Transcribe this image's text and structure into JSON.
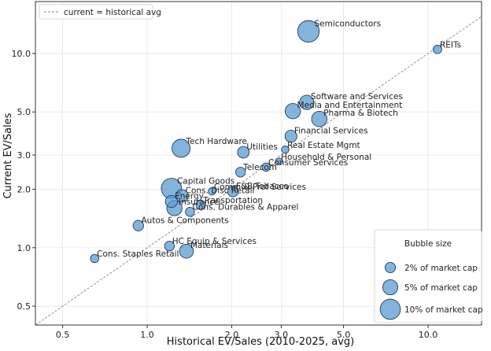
{
  "chart_data": {
    "type": "scatter",
    "title": "",
    "xlabel": "Historical EV/Sales (2010-2025, avg)",
    "ylabel": "Current EV/Sales",
    "x_scale": "log",
    "y_scale": "log",
    "xlim": [
      0.4,
      15.5
    ],
    "ylim": [
      0.4,
      18.5
    ],
    "x_ticks": [
      {
        "value": 0.5,
        "label": "0.5"
      },
      {
        "value": 1.0,
        "label": "1.0"
      },
      {
        "value": 2.0,
        "label": "2.0"
      },
      {
        "value": 3.0,
        "label": "3.0"
      },
      {
        "value": 5.0,
        "label": "5.0"
      },
      {
        "value": 10.0,
        "label": "10.0"
      }
    ],
    "y_ticks": [
      {
        "value": 0.5,
        "label": "0.5"
      },
      {
        "value": 1.0,
        "label": "1.0"
      },
      {
        "value": 2.0,
        "label": "2.0"
      },
      {
        "value": 3.0,
        "label": "3.0"
      },
      {
        "value": 5.0,
        "label": "5.0"
      },
      {
        "value": 10.0,
        "label": "10.0"
      }
    ],
    "grid": true,
    "reference_line": {
      "label": "current = historical avg",
      "legend_placement": "top-left"
    },
    "bubble_color": "#5b9bd0",
    "points": [
      {
        "name": "Semiconductors",
        "x": 3.75,
        "y": 13.0,
        "size": 11.5
      },
      {
        "name": "REITs",
        "x": 10.8,
        "y": 10.5,
        "size": 1.2
      },
      {
        "name": "Software and Services",
        "x": 3.7,
        "y": 5.6,
        "size": 4.5
      },
      {
        "name": "Media and Entertainment",
        "x": 3.3,
        "y": 5.05,
        "size": 5.3
      },
      {
        "name": "Pharma & Biotech",
        "x": 4.1,
        "y": 4.6,
        "size": 5.3
      },
      {
        "name": "Financial Services",
        "x": 3.25,
        "y": 3.75,
        "size": 2.9
      },
      {
        "name": "Real Estate Mgmt",
        "x": 3.1,
        "y": 3.2,
        "size": 0.8
      },
      {
        "name": "Household & Personal",
        "x": 2.95,
        "y": 2.78,
        "size": 0.6
      },
      {
        "name": "Consumer Services",
        "x": 2.65,
        "y": 2.6,
        "size": 1.1
      },
      {
        "name": "Tech Hardware",
        "x": 1.32,
        "y": 3.25,
        "size": 7.8
      },
      {
        "name": "Utilities",
        "x": 2.2,
        "y": 3.1,
        "size": 2.7
      },
      {
        "name": "Telecom",
        "x": 2.15,
        "y": 2.45,
        "size": 1.7
      },
      {
        "name": "Capital Goods",
        "x": 1.22,
        "y": 2.02,
        "size": 10.0
      },
      {
        "name": "Comm & Prof Services",
        "x": 1.7,
        "y": 1.95,
        "size": 0.8
      },
      {
        "name": "F&B Tobacco",
        "x": 2.02,
        "y": 1.95,
        "size": 2.2
      },
      {
        "name": "Cons. Disc Retail",
        "x": 1.33,
        "y": 1.85,
        "size": 3.2
      },
      {
        "name": "Energy",
        "x": 1.22,
        "y": 1.73,
        "size": 3.0
      },
      {
        "name": "Transportation",
        "x": 1.55,
        "y": 1.66,
        "size": 1.5
      },
      {
        "name": "Insurance",
        "x": 1.25,
        "y": 1.6,
        "size": 5.2
      },
      {
        "name": "Cons. Durables & Apparel",
        "x": 1.42,
        "y": 1.53,
        "size": 1.4
      },
      {
        "name": "Autos & Components",
        "x": 0.93,
        "y": 1.3,
        "size": 2.1
      },
      {
        "name": "HC Equip & Services",
        "x": 1.2,
        "y": 1.02,
        "size": 1.7
      },
      {
        "name": "Materials",
        "x": 1.38,
        "y": 0.96,
        "size": 4.2
      },
      {
        "name": "Cons. Staples Retail",
        "x": 0.65,
        "y": 0.88,
        "size": 1.1
      }
    ],
    "size_legend": {
      "title": "Bubble size",
      "placement": "bottom-right",
      "entries": [
        {
          "label": "2% of market cap",
          "size": 2
        },
        {
          "label": "5% of market cap",
          "size": 5
        },
        {
          "label": "10% of market cap",
          "size": 10
        }
      ]
    }
  }
}
